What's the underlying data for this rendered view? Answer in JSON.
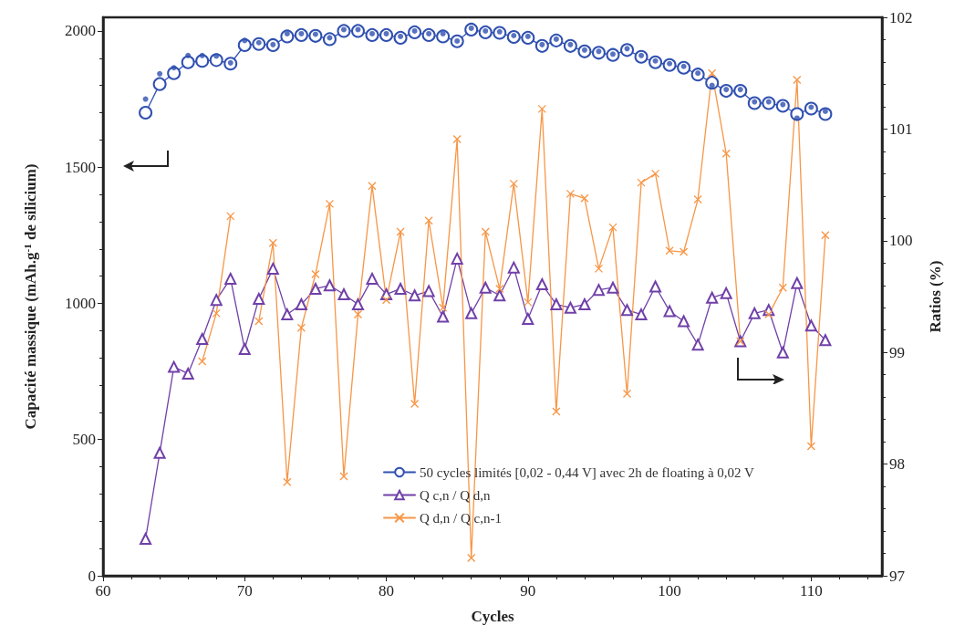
{
  "chart_data": {
    "type": "line",
    "xlabel": "Cycles",
    "ylabel": "Capacité massique (mAh.g$^{-1}$ de silicium)",
    "y2label": "Ratios (%)",
    "x": [
      63,
      64,
      65,
      66,
      67,
      68,
      69,
      70,
      71,
      72,
      73,
      74,
      75,
      76,
      77,
      78,
      79,
      80,
      81,
      82,
      83,
      84,
      85,
      86,
      87,
      88,
      89,
      90,
      91,
      92,
      93,
      94,
      95,
      96,
      97,
      98,
      99,
      100,
      101,
      102,
      103,
      104,
      105,
      106,
      107,
      108,
      109,
      110,
      111
    ],
    "series": [
      {
        "name": "50 cycles limités [0,02 - 0,44 V] avec 2h de floating à 0,02 V",
        "color": "#3050b0",
        "marker": "circle",
        "values": [
          1700,
          1805,
          1845,
          1885,
          1890,
          1893,
          1880,
          1948,
          1952,
          1948,
          1980,
          1985,
          1982,
          1970,
          2000,
          2000,
          1985,
          1985,
          1975,
          1995,
          1985,
          1980,
          1962,
          2005,
          1995,
          1993,
          1978,
          1975,
          1945,
          1965,
          1945,
          1925,
          1920,
          1912,
          1930,
          1905,
          1885,
          1875,
          1865,
          1840,
          1810,
          1780,
          1780,
          1735,
          1735,
          1725,
          1695,
          1715,
          1695
        ]
      },
      {
        "type": "scatter",
        "color": "#3050b0",
        "marker": "circle",
        "values": [
          1750,
          1843,
          1865,
          1910,
          1910,
          1908,
          1883,
          1965,
          1957,
          1950,
          1990,
          1990,
          1988,
          1975,
          2005,
          2005,
          1990,
          1990,
          1980,
          2000,
          1990,
          1990,
          1963,
          2010,
          2000,
          1997,
          1983,
          1980,
          1950,
          1970,
          1950,
          1930,
          1925,
          1915,
          1935,
          1910,
          1890,
          1880,
          1870,
          1845,
          1800,
          1785,
          1785,
          1740,
          1740,
          1730,
          1680,
          1720,
          1705
        ]
      },
      {
        "name": "Q c,n / Q d,n",
        "color": "#7040a8",
        "marker": "triangle",
        "axis": "y2",
        "values": [
          97.33,
          98.1,
          98.87,
          98.81,
          99.12,
          99.47,
          99.66,
          99.03,
          99.48,
          99.75,
          99.34,
          99.43,
          99.57,
          99.6,
          99.52,
          99.43,
          99.66,
          99.52,
          99.57,
          99.51,
          99.55,
          99.32,
          99.84,
          99.35,
          99.58,
          99.51,
          99.76,
          99.3,
          99.61,
          99.43,
          99.4,
          99.43,
          99.56,
          99.58,
          99.38,
          99.34,
          99.59,
          99.37,
          99.28,
          99.07,
          99.49,
          99.53,
          99.1,
          99.35,
          99.38,
          99.0,
          99.62,
          99.24,
          99.11
        ]
      },
      {
        "name": "Q d,n / Q c,n-1",
        "color": "#f79646",
        "marker": "cross",
        "axis": "y2",
        "values": [
          null,
          null,
          null,
          null,
          98.92,
          99.35,
          100.22,
          null,
          99.28,
          99.98,
          97.84,
          99.22,
          99.7,
          100.33,
          97.89,
          99.34,
          100.49,
          99.47,
          100.08,
          98.54,
          100.18,
          99.4,
          100.91,
          97.16,
          100.08,
          99.57,
          100.51,
          99.45,
          101.18,
          98.47,
          100.42,
          100.38,
          99.75,
          100.12,
          98.63,
          100.52,
          100.6,
          99.91,
          99.9,
          100.37,
          101.5,
          100.78,
          99.1,
          null,
          99.34,
          99.58,
          101.44,
          98.16,
          100.05
        ]
      }
    ],
    "xlim": [
      60,
      115
    ],
    "xticks": [
      60,
      70,
      80,
      90,
      100,
      110
    ],
    "ylim": [
      0,
      2050
    ],
    "yticks": [
      0,
      500,
      1000,
      1500,
      2000
    ],
    "y2lim": [
      97,
      102
    ],
    "y2ticks": [
      97,
      98,
      99,
      100,
      101,
      102
    ],
    "legend": "bottom",
    "grid": false,
    "line_style": "solid"
  }
}
